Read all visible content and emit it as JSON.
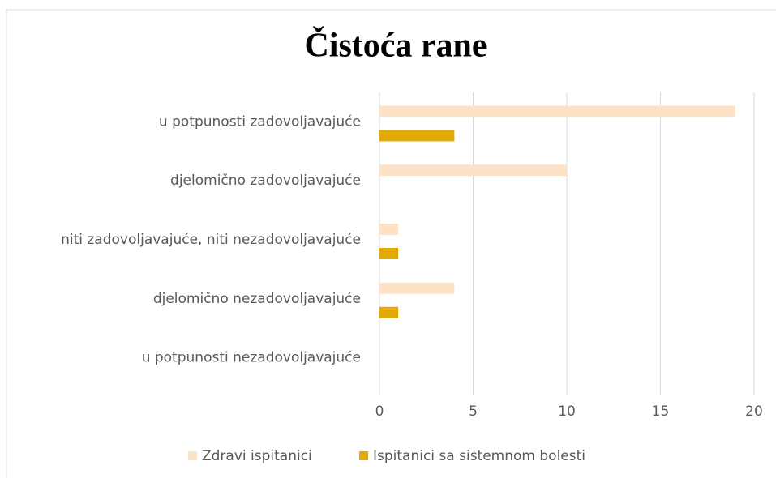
{
  "chart_data": {
    "type": "hbar",
    "title": "Čistoća rane",
    "categories": [
      "u potpunosti zadovoljavajuće",
      "djelomično zadovoljavajuće",
      "niti zadovoljavajuće, niti nezadovoljavajuće",
      "djelomično nezadovoljavajuće",
      "u potpunosti nezadovoljavajuće"
    ],
    "series": [
      {
        "name": "Zdravi ispitanici",
        "color": "#fce3c7",
        "values": [
          19,
          10,
          1,
          4,
          0
        ]
      },
      {
        "name": "Ispitanici sa sistemnom bolesti",
        "color": "#e3aa06",
        "values": [
          4,
          0,
          1,
          1,
          0
        ]
      }
    ],
    "xlim": [
      0,
      20
    ],
    "xticks": [
      0,
      5,
      10,
      15,
      20
    ],
    "grid": true,
    "legend": "bottom"
  }
}
